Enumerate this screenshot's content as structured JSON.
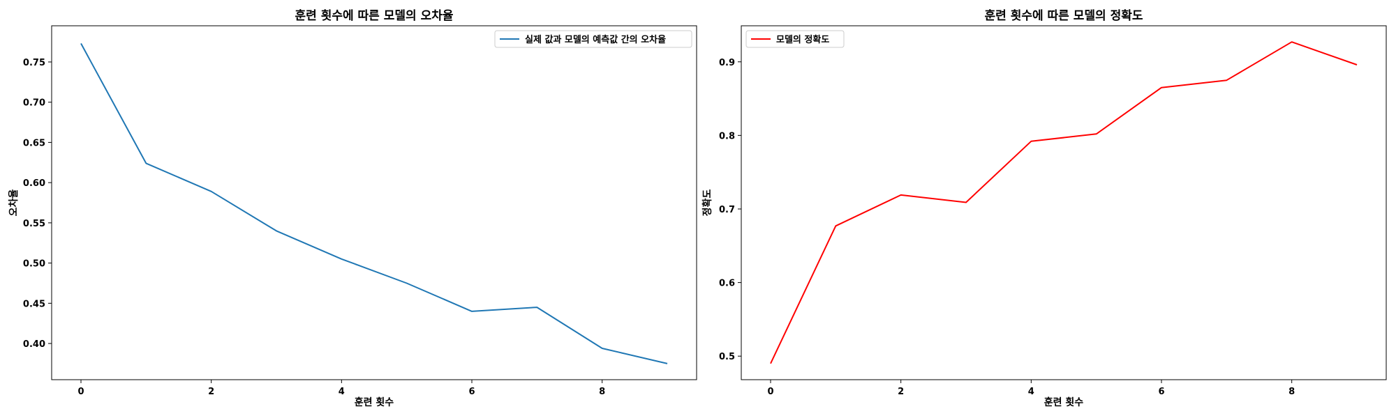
{
  "chart_data": [
    {
      "type": "line",
      "title": "훈련 횟수에 따른 모델의 오차율",
      "xlabel": "훈련 횟수",
      "ylabel": "오차율",
      "x": [
        0,
        1,
        2,
        3,
        4,
        5,
        6,
        7,
        8,
        9
      ],
      "series": [
        {
          "name": "실제 값과 모델의 예측값 간의 오차율",
          "color": "#1f77b4",
          "values": [
            0.773,
            0.624,
            0.589,
            0.54,
            0.505,
            0.475,
            0.44,
            0.445,
            0.394,
            0.375
          ]
        }
      ],
      "xlim": [
        -0.45,
        9.45
      ],
      "ylim": [
        0.355,
        0.795
      ],
      "xticks": [
        0,
        2,
        4,
        6,
        8
      ],
      "xtick_labels": [
        "0",
        "2",
        "4",
        "6",
        "8"
      ],
      "yticks": [
        0.4,
        0.45,
        0.5,
        0.55,
        0.6,
        0.65,
        0.7,
        0.75
      ],
      "ytick_labels": [
        "0.40",
        "0.45",
        "0.50",
        "0.55",
        "0.60",
        "0.65",
        "0.70",
        "0.75"
      ],
      "legend_position": "upper right",
      "grid": false
    },
    {
      "type": "line",
      "title": "훈련 횟수에 따른 모델의 정확도",
      "xlabel": "훈련 횟수",
      "ylabel": "정확도",
      "x": [
        0,
        1,
        2,
        3,
        4,
        5,
        6,
        7,
        8,
        9
      ],
      "series": [
        {
          "name": "모델의 정확도",
          "color": "#ff0000",
          "values": [
            0.49,
            0.677,
            0.719,
            0.709,
            0.792,
            0.802,
            0.865,
            0.875,
            0.927,
            0.896
          ]
        }
      ],
      "xlim": [
        -0.45,
        9.45
      ],
      "ylim": [
        0.468,
        0.949
      ],
      "xticks": [
        0,
        2,
        4,
        6,
        8
      ],
      "xtick_labels": [
        "0",
        "2",
        "4",
        "6",
        "8"
      ],
      "yticks": [
        0.5,
        0.6,
        0.7,
        0.8,
        0.9
      ],
      "ytick_labels": [
        "0.5",
        "0.6",
        "0.7",
        "0.8",
        "0.9"
      ],
      "legend_position": "upper left",
      "grid": false
    }
  ]
}
